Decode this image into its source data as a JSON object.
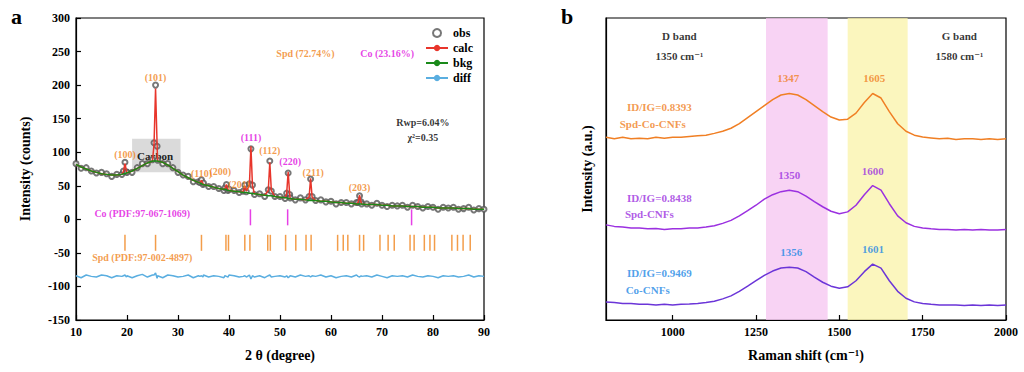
{
  "chart_data": [
    {
      "type": "line",
      "title": "a",
      "x_label": "2 θ (degree)",
      "y_label": "Intensity (counts)",
      "xlim": [
        10,
        90
      ],
      "xticks": [
        10,
        20,
        30,
        40,
        50,
        60,
        70,
        80,
        90
      ],
      "ylim": [
        -150,
        300
      ],
      "yticks": [
        -150,
        -100,
        -50,
        0,
        50,
        100,
        150,
        200,
        250,
        300
      ],
      "grid": false,
      "legend": "upper right",
      "x": [
        10,
        11,
        12,
        13,
        14,
        15,
        16,
        17,
        18,
        19,
        19.3,
        19.6,
        19.9,
        20,
        21,
        22,
        23,
        24,
        25,
        25.3,
        25.6,
        25.9,
        26,
        27,
        28,
        29,
        30,
        31,
        32,
        33,
        34,
        34.3,
        34.6,
        34.9,
        35,
        36,
        37,
        38,
        39,
        39.2,
        39.5,
        39.8,
        40,
        41,
        42,
        42.8,
        43.1,
        43.4,
        44,
        44.3,
        44.6,
        45,
        46,
        47,
        47.7,
        48,
        48.3,
        49,
        50,
        51,
        51.3,
        51.6,
        51.9,
        52,
        53,
        54,
        55,
        55.7,
        56,
        56.3,
        57,
        58,
        59,
        60,
        61,
        62,
        63,
        64,
        65,
        65.3,
        65.6,
        65.9,
        66,
        67,
        68,
        69,
        70,
        71,
        72,
        73,
        74,
        75,
        76,
        77,
        78,
        79,
        80,
        81,
        82,
        83,
        84,
        85,
        86,
        87,
        88,
        89,
        90
      ],
      "series": [
        {
          "name": "obs",
          "type": "scatter",
          "marker": "circle-open",
          "color": "#555555",
          "values": [
            83,
            76,
            77,
            72,
            69,
            70,
            68,
            64,
            67,
            67,
            72,
            85,
            71,
            70,
            70,
            77,
            83,
            83,
            89,
            114,
            200,
            109,
            88,
            83,
            83,
            77,
            70,
            66,
            64,
            56,
            56,
            55,
            59,
            52,
            54,
            49,
            49,
            46,
            43,
            47,
            52,
            43,
            45,
            43,
            40,
            42,
            51,
            41,
            53,
            105,
            51,
            37,
            38,
            34,
            44,
            87,
            42,
            34,
            34,
            31,
            39,
            69,
            37,
            32,
            29,
            32,
            29,
            34,
            60,
            34,
            28,
            29,
            26,
            27,
            23,
            25,
            25,
            23,
            25,
            25,
            35,
            26,
            23,
            23,
            21,
            24,
            21,
            19,
            21,
            20,
            21,
            18,
            21,
            19,
            17,
            19,
            18,
            15,
            18,
            17,
            18,
            15,
            16,
            18,
            14,
            16,
            15
          ]
        },
        {
          "name": "calc",
          "type": "line",
          "color": "#e8352b",
          "values": [
            82,
            78,
            75,
            72,
            70,
            68,
            67,
            66,
            66,
            67,
            71,
            83,
            72,
            69,
            72,
            76,
            80,
            84,
            87,
            112,
            195,
            112,
            87,
            85,
            81,
            76,
            71,
            66,
            62,
            58,
            55,
            55,
            58,
            53,
            52,
            50,
            48,
            46,
            45,
            46,
            52,
            44,
            43,
            42,
            41,
            42,
            50,
            42,
            51,
            109,
            50,
            38,
            37,
            36,
            43,
            85,
            43,
            34,
            33,
            32,
            38,
            71,
            37,
            31,
            30,
            30,
            29,
            33,
            61,
            33,
            28,
            27,
            27,
            26,
            25,
            25,
            24,
            24,
            23,
            25,
            36,
            25,
            23,
            22,
            22,
            22,
            21,
            21,
            20,
            20,
            20,
            19,
            19,
            19,
            18,
            18,
            18,
            17,
            17,
            17,
            17,
            16,
            16,
            16,
            15,
            15,
            15
          ]
        },
        {
          "name": "bkg",
          "type": "line",
          "color": "#1a8a1a",
          "values": [
            82,
            78,
            75,
            72,
            70,
            68,
            67,
            66,
            66,
            67,
            68,
            68,
            69,
            69,
            72,
            76,
            80,
            84,
            87,
            87,
            87,
            87,
            87,
            85,
            81,
            76,
            71,
            66,
            62,
            58,
            55,
            54,
            53,
            52,
            52,
            50,
            48,
            46,
            45,
            45,
            44,
            43,
            43,
            42,
            41,
            40,
            40,
            40,
            39,
            39,
            38,
            38,
            37,
            36,
            35,
            35,
            35,
            34,
            33,
            32,
            32,
            31,
            31,
            31,
            30,
            30,
            29,
            28,
            28,
            28,
            28,
            27,
            27,
            26,
            25,
            25,
            24,
            24,
            23,
            23,
            23,
            23,
            23,
            22,
            22,
            22,
            21,
            21,
            20,
            20,
            20,
            19,
            19,
            19,
            18,
            18,
            18,
            17,
            17,
            17,
            17,
            16,
            16,
            16,
            15,
            15,
            15
          ]
        },
        {
          "name": "diff",
          "type": "line",
          "color": "#5aaee0",
          "values": [
            -84,
            -87,
            -83,
            -85,
            -86,
            -83,
            -84,
            -87,
            -84,
            -85,
            -84,
            -83,
            -86,
            -84,
            -87,
            -84,
            -82,
            -86,
            -83,
            -83,
            -80,
            -88,
            -84,
            -87,
            -83,
            -84,
            -86,
            -85,
            -83,
            -87,
            -84,
            -85,
            -84,
            -86,
            -83,
            -86,
            -84,
            -85,
            -87,
            -84,
            -85,
            -86,
            -83,
            -84,
            -86,
            -85,
            -84,
            -86,
            -83,
            -89,
            -84,
            -86,
            -84,
            -87,
            -84,
            -83,
            -86,
            -85,
            -84,
            -86,
            -84,
            -87,
            -85,
            -84,
            -86,
            -83,
            -85,
            -84,
            -86,
            -84,
            -85,
            -83,
            -86,
            -84,
            -87,
            -85,
            -84,
            -86,
            -83,
            -85,
            -86,
            -84,
            -85,
            -84,
            -86,
            -83,
            -85,
            -87,
            -84,
            -85,
            -84,
            -86,
            -83,
            -85,
            -86,
            -84,
            -85,
            -87,
            -84,
            -85,
            -84,
            -86,
            -85,
            -83,
            -86,
            -84,
            -85
          ]
        }
      ],
      "reflections": [
        {
          "name": "Spd",
          "color": "#f0841d",
          "y": -35,
          "positions": [
            19.6,
            25.6,
            34.6,
            39.4,
            39.9,
            43.1,
            44.1,
            47.6,
            48.1,
            51.1,
            53.1,
            55.1,
            56.1,
            61.3,
            62.4,
            63.3,
            65.6,
            66.4,
            69.6,
            71.2,
            72.4,
            75.5,
            76.3,
            78.3,
            79.4,
            80.3,
            83.7,
            84.8,
            85.9,
            87.3
          ]
        },
        {
          "name": "Co",
          "color": "#e010e0",
          "y": 3,
          "positions": [
            44.2,
            51.5,
            75.8
          ]
        }
      ],
      "regions": [
        {
          "label": "Carbon",
          "x": [
            21,
            30.5
          ],
          "y": [
            70,
            120
          ]
        }
      ],
      "annotations": [
        {
          "text": "(100)",
          "x": 19.6,
          "y": 97,
          "color": "#f0841d"
        },
        {
          "text": "(101)",
          "x": 25.6,
          "y": 212,
          "color": "#f0841d"
        },
        {
          "text": "(110)",
          "x": 34.6,
          "y": 68,
          "color": "#f0841d"
        },
        {
          "text": "(200)",
          "x": 38.3,
          "y": 72,
          "color": "#f0841d"
        },
        {
          "text": "(201)",
          "x": 42,
          "y": 52,
          "color": "#f0841d"
        },
        {
          "text": "(111)",
          "x": 44.3,
          "y": 122,
          "color": "#e010e0"
        },
        {
          "text": "(112)",
          "x": 48,
          "y": 102,
          "color": "#f0841d"
        },
        {
          "text": "(220)",
          "x": 52,
          "y": 86,
          "color": "#e010e0"
        },
        {
          "text": "(211)",
          "x": 56.5,
          "y": 70,
          "color": "#f0841d"
        },
        {
          "text": "(203)",
          "x": 65.6,
          "y": 48,
          "color": "#f0841d"
        },
        {
          "text": "Spd (72.74%)",
          "x": 55,
          "y": 247,
          "color": "#f0841d"
        },
        {
          "text": "Co (23.16%)",
          "x": 71,
          "y": 247,
          "color": "#e010e0"
        },
        {
          "text": "Rwp=6.04%",
          "x": 78,
          "y": 145,
          "color": "#000000"
        },
        {
          "text": "χ²=0.35",
          "x": 78,
          "y": 122,
          "color": "#000000"
        },
        {
          "text": "Co (PDF:97-067-1069)",
          "x": 23,
          "y": 8,
          "color": "#e010e0"
        },
        {
          "text": "Spd (PDF:97-002-4897)",
          "x": 23,
          "y": -57,
          "color": "#f0841d"
        }
      ]
    },
    {
      "type": "line",
      "title": "b",
      "x_label": "Raman shift (cm⁻¹)",
      "y_label": "Intensity (a.u.)",
      "xlim": [
        800,
        2000
      ],
      "xticks": [
        1000,
        1250,
        1500,
        1750,
        2000
      ],
      "ylim": [
        0,
        10
      ],
      "grid": false,
      "tick_labels": "x",
      "x": [
        800,
        825,
        850,
        875,
        900,
        925,
        950,
        975,
        1000,
        1025,
        1050,
        1075,
        1100,
        1125,
        1150,
        1175,
        1200,
        1225,
        1250,
        1275,
        1300,
        1325,
        1350,
        1375,
        1400,
        1425,
        1450,
        1475,
        1500,
        1525,
        1550,
        1575,
        1600,
        1625,
        1650,
        1675,
        1700,
        1725,
        1750,
        1775,
        1800,
        1825,
        1850,
        1875,
        1900,
        1925,
        1950,
        1975,
        2000
      ],
      "series": [
        {
          "name": "Spd-Co-CNFs",
          "color": "#f07f24",
          "values": [
            6.05,
            6.0,
            6.05,
            6.0,
            6.02,
            6.0,
            6.05,
            6.02,
            6.05,
            6.05,
            6.08,
            6.1,
            6.12,
            6.18,
            6.25,
            6.35,
            6.5,
            6.7,
            6.9,
            7.1,
            7.3,
            7.45,
            7.5,
            7.45,
            7.3,
            7.1,
            6.9,
            6.72,
            6.62,
            6.65,
            6.85,
            7.2,
            7.5,
            7.35,
            6.9,
            6.5,
            6.25,
            6.12,
            6.06,
            6.03,
            6.0,
            6.02,
            5.98,
            6.0,
            6.0,
            5.98,
            6.0,
            5.98,
            6.0
          ]
        },
        {
          "name": "Spd-CNFs",
          "color": "#9b30e0",
          "values": [
            3.15,
            3.1,
            3.08,
            3.05,
            3.05,
            3.02,
            3.03,
            3.0,
            3.02,
            3.02,
            3.05,
            3.05,
            3.08,
            3.12,
            3.2,
            3.3,
            3.45,
            3.62,
            3.8,
            4.0,
            4.15,
            4.25,
            4.3,
            4.25,
            4.1,
            3.92,
            3.75,
            3.6,
            3.52,
            3.58,
            3.8,
            4.15,
            4.45,
            4.3,
            3.85,
            3.45,
            3.22,
            3.1,
            3.05,
            3.02,
            3.0,
            3.0,
            2.98,
            3.0,
            2.98,
            3.0,
            2.98,
            2.98,
            3.0
          ]
        },
        {
          "name": "Co-CNFs",
          "color": "#6b35d8",
          "values": [
            0.6,
            0.58,
            0.55,
            0.55,
            0.52,
            0.52,
            0.5,
            0.52,
            0.5,
            0.52,
            0.53,
            0.55,
            0.58,
            0.62,
            0.7,
            0.8,
            0.95,
            1.12,
            1.3,
            1.48,
            1.62,
            1.72,
            1.75,
            1.72,
            1.6,
            1.42,
            1.25,
            1.12,
            1.05,
            1.1,
            1.3,
            1.6,
            1.85,
            1.72,
            1.3,
            0.95,
            0.72,
            0.6,
            0.55,
            0.52,
            0.5,
            0.5,
            0.5,
            0.48,
            0.5,
            0.48,
            0.5,
            0.48,
            0.5
          ]
        }
      ],
      "bands": [
        {
          "x": [
            1280,
            1465
          ],
          "color": "#f5c4f0"
        },
        {
          "x": [
            1525,
            1705
          ],
          "color": "#faf3a8"
        }
      ],
      "annotations": [
        {
          "text": "D band",
          "x": 1020,
          "y": 9.4,
          "color": "#000000"
        },
        {
          "text": "1350 cm⁻¹",
          "x": 1020,
          "y": 8.75,
          "color": "#000000"
        },
        {
          "text": "G band",
          "x": 1860,
          "y": 9.4,
          "color": "#000000"
        },
        {
          "text": "1580 cm⁻¹",
          "x": 1860,
          "y": 8.75,
          "color": "#000000"
        },
        {
          "text": "ID/IG=0.8393",
          "x": 960,
          "y": 7.05,
          "color": "#f07f24"
        },
        {
          "text": "Spd-Co-CNFs",
          "x": 940,
          "y": 6.5,
          "color": "#f07f24"
        },
        {
          "text": "1347",
          "x": 1347,
          "y": 8.0,
          "color": "#f07f24"
        },
        {
          "text": "1605",
          "x": 1605,
          "y": 8.0,
          "color": "#f07f24"
        },
        {
          "text": "ID/IG=0.8438",
          "x": 960,
          "y": 4.05,
          "color": "#9b30e0"
        },
        {
          "text": "Spd-CNFs",
          "x": 930,
          "y": 3.5,
          "color": "#9b30e0"
        },
        {
          "text": "1350",
          "x": 1350,
          "y": 4.8,
          "color": "#9b30e0"
        },
        {
          "text": "1600",
          "x": 1600,
          "y": 4.95,
          "color": "#9b30e0"
        },
        {
          "text": "ID/IG=0.9469",
          "x": 960,
          "y": 1.55,
          "color": "#1e88e5"
        },
        {
          "text": "Co-CNFs",
          "x": 925,
          "y": 1.0,
          "color": "#1e88e5"
        },
        {
          "text": "1356",
          "x": 1356,
          "y": 2.25,
          "color": "#1e88e5"
        },
        {
          "text": "1601",
          "x": 1601,
          "y": 2.35,
          "color": "#1e88e5"
        }
      ]
    }
  ]
}
